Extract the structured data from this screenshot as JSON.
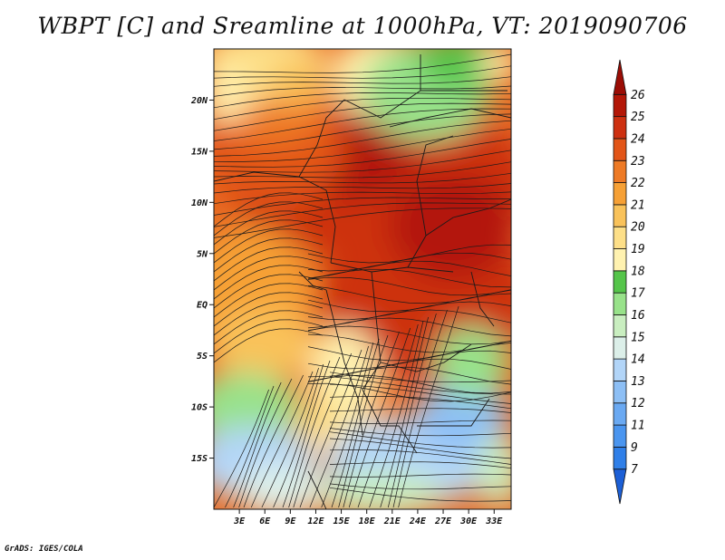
{
  "title": "WBPT [C] and Sreamline at 1000hPa, VT: 2019090706",
  "credit": "GrADS: IGES/COLA",
  "map": {
    "lon_range": [
      0,
      35
    ],
    "lat_range": [
      -20,
      25
    ],
    "x_ticks": [
      {
        "value": 3,
        "label": "3E"
      },
      {
        "value": 6,
        "label": "6E"
      },
      {
        "value": 9,
        "label": "9E"
      },
      {
        "value": 12,
        "label": "12E"
      },
      {
        "value": 15,
        "label": "15E"
      },
      {
        "value": 18,
        "label": "18E"
      },
      {
        "value": 21,
        "label": "21E"
      },
      {
        "value": 24,
        "label": "24E"
      },
      {
        "value": 27,
        "label": "27E"
      },
      {
        "value": 30,
        "label": "30E"
      },
      {
        "value": 33,
        "label": "33E"
      }
    ],
    "y_ticks": [
      {
        "value": 20,
        "label": "20N"
      },
      {
        "value": 15,
        "label": "15N"
      },
      {
        "value": 10,
        "label": "10N"
      },
      {
        "value": 5,
        "label": "5N"
      },
      {
        "value": 0,
        "label": "EQ"
      },
      {
        "value": -5,
        "label": "5S"
      },
      {
        "value": -10,
        "label": "10S"
      },
      {
        "value": -15,
        "label": "15S"
      }
    ]
  },
  "colorbar": {
    "levels": [
      "7",
      "9",
      "11",
      "12",
      "13",
      "14",
      "15",
      "16",
      "17",
      "18",
      "19",
      "20",
      "21",
      "22",
      "23",
      "24",
      "25",
      "26"
    ],
    "colors": [
      "#1c5fd6",
      "#2f7fe8",
      "#4a95ef",
      "#6aa9f2",
      "#8dbff5",
      "#b2d5f8",
      "#dcefe9",
      "#c9eec0",
      "#98e28a",
      "#55c54a",
      "#fff2b0",
      "#fddf88",
      "#f9c25a",
      "#f6a035",
      "#ee7a25",
      "#e25518",
      "#cd3010",
      "#b31707",
      "#9b0d05"
    ]
  }
}
